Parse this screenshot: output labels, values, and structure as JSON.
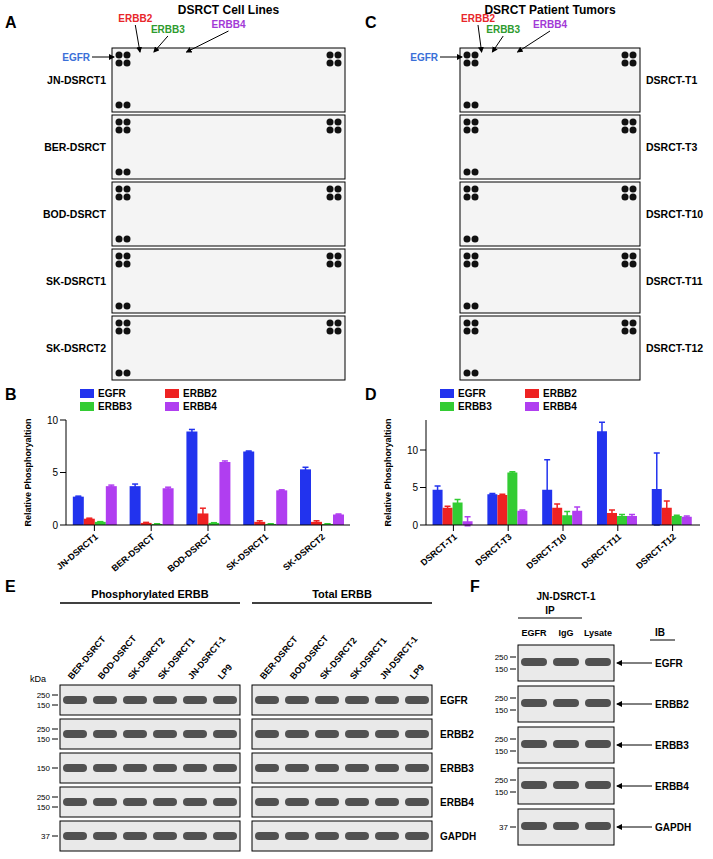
{
  "panels": {
    "A": {
      "letter": "A",
      "title": "DSRCT Cell Lines",
      "samples": [
        "JN-DSRCT1",
        "BER-DSRCT",
        "BOD-DSRCT",
        "SK-DSRCT1",
        "SK-DSRCT2"
      ],
      "receptors": [
        {
          "name": "EGFR",
          "color": "#3a6fd8"
        },
        {
          "name": "ERBB2",
          "color": "#e8262a"
        },
        {
          "name": "ERBB3",
          "color": "#2e9b2e"
        },
        {
          "name": "ERBB4",
          "color": "#a23ad6"
        }
      ]
    },
    "C": {
      "letter": "C",
      "title": "DSRCT Patient Tumors",
      "samples": [
        "DSRCT-T1",
        "DSRCT-T3",
        "DSRCT-T10",
        "DSRCT-T11",
        "DSRCT-T12"
      ],
      "receptors": [
        {
          "name": "EGFR",
          "color": "#3a6fd8"
        },
        {
          "name": "ERBB2",
          "color": "#e8262a"
        },
        {
          "name": "ERBB3",
          "color": "#2e9b2e"
        },
        {
          "name": "ERBB4",
          "color": "#a23ad6"
        }
      ]
    },
    "E": {
      "letter": "E",
      "groups": [
        "Phosphorylated ERBB",
        "Total ERBB"
      ],
      "lanes": [
        "BER-DSRCT",
        "BOD-DSRCT",
        "SK-DSRCT2",
        "SK-DSRCT1",
        "JN-DSRCT-1",
        "LP9"
      ],
      "unit": "kDa",
      "rows": [
        {
          "name": "EGFR",
          "markers": [
            250,
            150
          ]
        },
        {
          "name": "ERBB2",
          "markers": [
            250,
            150
          ]
        },
        {
          "name": "ERBB3",
          "markers": [
            150
          ]
        },
        {
          "name": "ERBB4",
          "markers": [
            250,
            150
          ]
        },
        {
          "name": "GAPDH",
          "markers": [
            37
          ]
        }
      ]
    },
    "F": {
      "letter": "F",
      "cell_line": "JN-DSRCT-1",
      "ip_label": "IP",
      "ib_label": "IB",
      "ip_lanes": [
        "EGFR",
        "IgG"
      ],
      "other_lanes": [
        "Lysate"
      ],
      "rows": [
        {
          "name": "EGFR",
          "markers": [
            250,
            150
          ]
        },
        {
          "name": "ERBB2",
          "markers": [
            250,
            150
          ]
        },
        {
          "name": "ERBB3",
          "markers": [
            250,
            150
          ]
        },
        {
          "name": "ERBB4",
          "markers": [
            250,
            150
          ]
        },
        {
          "name": "GAPDH",
          "markers": [
            37
          ]
        }
      ]
    }
  },
  "chart_data": [
    {
      "panel": "B",
      "type": "bar",
      "categories": [
        "JN-DSRCT1",
        "BER-DSRCT",
        "BOD-DSRCT",
        "SK-DSRCT1",
        "SK-DSRCT2"
      ],
      "ylabel": "Relative Phosphoryaltion",
      "ylim": [
        0,
        10
      ],
      "yticks": [
        0,
        5,
        10
      ],
      "legend": "top",
      "series": [
        {
          "name": "EGFR",
          "color": "#2233ee",
          "values": [
            2.7,
            3.7,
            8.9,
            7.0,
            5.3
          ],
          "errors": [
            0.05,
            0.2,
            0.2,
            0.05,
            0.2
          ]
        },
        {
          "name": "ERBB2",
          "color": "#ee2222",
          "values": [
            0.6,
            0.2,
            1.1,
            0.3,
            0.3
          ],
          "errors": [
            0.05,
            0.05,
            0.5,
            0.1,
            0.1
          ]
        },
        {
          "name": "ERBB3",
          "color": "#33cc33",
          "values": [
            0.3,
            0.1,
            0.2,
            0.1,
            0.1
          ],
          "errors": [
            0.02,
            0.02,
            0.02,
            0.02,
            0.02
          ]
        },
        {
          "name": "ERBB4",
          "color": "#b03ef0",
          "values": [
            3.7,
            3.5,
            6.0,
            3.3,
            1.0
          ],
          "errors": [
            0.1,
            0.1,
            0.1,
            0.05,
            0.05
          ]
        }
      ]
    },
    {
      "panel": "D",
      "type": "bar",
      "categories": [
        "DSRCT-T1",
        "DSRCT-T3",
        "DSRCT-T10",
        "DSRCT-T11",
        "DSRCT-T12"
      ],
      "ylabel": "Relative Phosphoryaltion",
      "ylim": [
        0,
        14
      ],
      "yticks": [
        0,
        5,
        10
      ],
      "legend": "top",
      "series": [
        {
          "name": "EGFR",
          "color": "#2233ee",
          "values": [
            4.7,
            4.1,
            4.7,
            12.5,
            4.8
          ],
          "errors": [
            0.5,
            0.1,
            4.0,
            1.2,
            4.8
          ]
        },
        {
          "name": "ERBB2",
          "color": "#ee2222",
          "values": [
            2.3,
            4.0,
            2.3,
            1.6,
            2.3
          ],
          "errors": [
            0.2,
            0.1,
            0.5,
            0.4,
            0.9
          ]
        },
        {
          "name": "ERBB3",
          "color": "#33cc33",
          "values": [
            3.0,
            7.0,
            1.3,
            1.2,
            1.2
          ],
          "errors": [
            0.4,
            0.1,
            0.5,
            0.2,
            0.1
          ]
        },
        {
          "name": "ERBB4",
          "color": "#b03ef0",
          "values": [
            0.5,
            1.9,
            1.9,
            1.2,
            1.1
          ],
          "errors": [
            0.6,
            0.1,
            0.5,
            0.2,
            0.1
          ]
        }
      ]
    }
  ]
}
